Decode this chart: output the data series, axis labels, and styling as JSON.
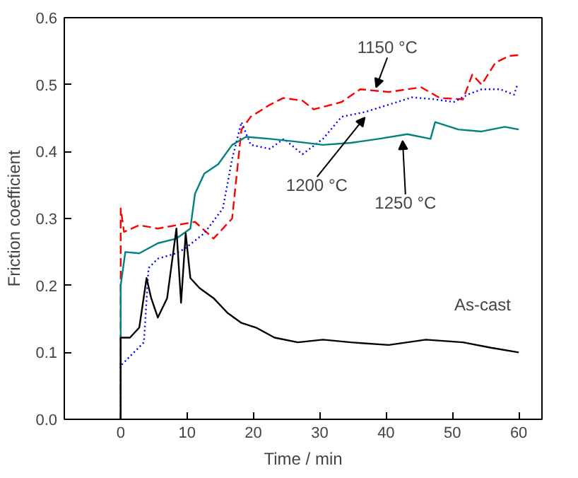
{
  "chart_data": {
    "type": "line",
    "xlabel": "Time / min",
    "ylabel": "Friction coefficient",
    "xlim": [
      -8.5,
      63.5
    ],
    "xticks": [
      0,
      10,
      20,
      30,
      40,
      50,
      60
    ],
    "ylim": [
      0,
      0.6
    ],
    "yticks": [
      {
        "value": 0,
        "label": "0.0"
      },
      0.1,
      0.2,
      0.3,
      0.4,
      0.5,
      0.6
    ],
    "grid": false,
    "series": [
      {
        "color": "#ff0000",
        "line_style": "dashed",
        "x": [
          0,
          0,
          0.5,
          2.8,
          5.6,
          8.4,
          11.2,
          14,
          16.8,
          18.2,
          19.6,
          22.5,
          24.5,
          27.4,
          29.1,
          33.3,
          36.1,
          40.4,
          45.3,
          48.1,
          51.6,
          53,
          54.4,
          56.5,
          58.6,
          60
        ],
        "values": [
          0,
          0.315,
          0.28,
          0.29,
          0.285,
          0.29,
          0.295,
          0.27,
          0.3,
          0.433,
          0.452,
          0.47,
          0.48,
          0.476,
          0.463,
          0.474,
          0.493,
          0.489,
          0.496,
          0.48,
          0.478,
          0.515,
          0.5,
          0.533,
          0.543,
          0.544
        ]
      },
      {
        "color": "#0000ff",
        "line_style": "dotted",
        "x": [
          0,
          0,
          3.5,
          4.2,
          5.6,
          8.4,
          9.8,
          12.6,
          15.4,
          16.8,
          18.2,
          19.6,
          22.5,
          24.6,
          27.4,
          30.5,
          33.3,
          36.8,
          40.4,
          43.9,
          47.4,
          50.2,
          52.3,
          54.4,
          57.2,
          59.3,
          59.8
        ],
        "values": [
          0,
          0.08,
          0.115,
          0.226,
          0.24,
          0.248,
          0.256,
          0.278,
          0.315,
          0.389,
          0.444,
          0.41,
          0.404,
          0.419,
          0.396,
          0.419,
          0.452,
          0.459,
          0.47,
          0.481,
          0.478,
          0.474,
          0.485,
          0.493,
          0.493,
          0.485,
          0.5
        ]
      },
      {
        "color": "#008080",
        "line_style": "solid",
        "x": [
          0,
          0,
          0.7,
          2.8,
          5.6,
          8.4,
          10.5,
          11.2,
          12.6,
          14.7,
          16.8,
          18.9,
          22.5,
          26.3,
          30.5,
          34.7,
          38.9,
          43.2,
          46.7,
          47.4,
          50.9,
          54.4,
          57.9,
          60
        ],
        "values": [
          0,
          0.2,
          0.25,
          0.248,
          0.263,
          0.27,
          0.285,
          0.337,
          0.367,
          0.381,
          0.41,
          0.422,
          0.419,
          0.415,
          0.41,
          0.413,
          0.419,
          0.426,
          0.419,
          0.444,
          0.433,
          0.43,
          0.437,
          0.433
        ]
      },
      {
        "color": "#000000",
        "line_style": "solid",
        "x": [
          0,
          0,
          1.4,
          2.8,
          3.9,
          4.6,
          5.6,
          7,
          7.7,
          8.4,
          9.1,
          9.8,
          10.5,
          11.9,
          14,
          16.1,
          18.2,
          20.4,
          23.2,
          26.7,
          30.5,
          34.7,
          40.4,
          46,
          51.6,
          55.8,
          60
        ],
        "values": [
          0,
          0.122,
          0.122,
          0.137,
          0.211,
          0.181,
          0.152,
          0.181,
          0.233,
          0.285,
          0.174,
          0.278,
          0.211,
          0.196,
          0.181,
          0.159,
          0.144,
          0.137,
          0.122,
          0.115,
          0.119,
          0.115,
          0.111,
          0.119,
          0.115,
          0.107,
          0.1
        ]
      }
    ],
    "annotations": [
      {
        "text": "1150 °C",
        "x": 38.5,
        "y": 0.496
      },
      {
        "text": "1200 °C",
        "x": 36.8,
        "y": 0.451
      },
      {
        "text": "1250 °C",
        "x": 42.5,
        "y": 0.416
      },
      "As-cast"
    ]
  }
}
